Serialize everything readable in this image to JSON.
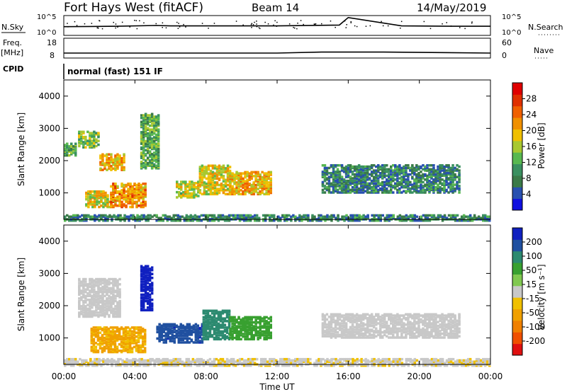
{
  "header": {
    "station": "Fort Hays West (fitACF)",
    "beam": "Beam 14",
    "date": "14/May/2019"
  },
  "summary": {
    "nsky_label": "N.Sky",
    "nsearch_label": "N.Search",
    "noise_ticks_left": [
      "10^5",
      "10^0"
    ],
    "noise_ticks_right": [
      "10^5",
      "10^0"
    ],
    "freq_label": "Freq.",
    "freq_unit": "[MHz]",
    "freq_ticks": [
      "18",
      "8"
    ],
    "nave_label": "Nave",
    "nave_ticks": [
      "60",
      "0"
    ],
    "cpid_label": "CPID",
    "cpid_text": "normal (fast) 151 IF"
  },
  "axes": {
    "ylabel": "Slant Range [km]",
    "yticks": [
      "4000",
      "3000",
      "2000",
      "1000"
    ],
    "xticks": [
      "00:00",
      "04:00",
      "08:00",
      "12:00",
      "16:00",
      "20:00",
      "00:00"
    ],
    "xlabel": "Time UT"
  },
  "power_scale": {
    "title": "Power [dB]",
    "ticks": [
      "28",
      "24",
      "20",
      "16",
      "12",
      "8",
      "4"
    ],
    "colors": [
      "#1010e0",
      "#2850b0",
      "#3a7a48",
      "#3a9060",
      "#58b850",
      "#a8c830",
      "#f0c000",
      "#f09000",
      "#f06000",
      "#e03000",
      "#e00000"
    ]
  },
  "velocity_scale": {
    "title": "Velocity [m s⁻¹]",
    "ticks": [
      "200",
      "100",
      "50",
      "15",
      "-15",
      "-50",
      "-100",
      "-200"
    ],
    "colors": [
      "#e01010",
      "#f05000",
      "#f08000",
      "#f0a000",
      "#f0c000",
      "#c8c8c8",
      "#80c850",
      "#38a030",
      "#2c8a70",
      "#2050a0",
      "#1020c0"
    ]
  },
  "chart_data": [
    {
      "type": "line",
      "title": "Fort Hays West (fitACF)",
      "panel": "N.Sky / N.Search noise",
      "x": [
        0,
        3,
        5.2,
        6,
        9,
        12,
        15.5,
        16,
        19,
        22,
        24
      ],
      "y_log10": [
        2.2,
        2.3,
        2.5,
        2.4,
        2.4,
        2.4,
        2.6,
        4.5,
        2.4,
        2.3,
        2.3
      ],
      "ylim": [
        0,
        5
      ]
    },
    {
      "type": "line",
      "panel": "Frequency / Nave",
      "x": [
        0,
        6,
        12,
        14.5,
        18,
        24
      ],
      "freq_mhz": [
        10.5,
        10.5,
        10.5,
        11,
        11,
        10.5
      ],
      "ylim": [
        8,
        18
      ]
    },
    {
      "type": "heatmap",
      "panel": "Power",
      "xlabel": "Time UT",
      "ylabel": "Slant Range [km]",
      "xlim": [
        0,
        24
      ],
      "ylim": [
        180,
        4500
      ],
      "colorbar": {
        "label": "Power [dB]",
        "range": [
          0,
          32
        ]
      },
      "features": [
        {
          "t0": 0.0,
          "t1": 0.7,
          "r0": 2200,
          "r1": 2600,
          "value": 12
        },
        {
          "t0": 0.8,
          "t1": 2.0,
          "r0": 2450,
          "r1": 2950,
          "value": 14
        },
        {
          "t0": 2.0,
          "t1": 3.4,
          "r0": 1750,
          "r1": 2250,
          "value": 20
        },
        {
          "t0": 1.2,
          "t1": 2.6,
          "r0": 600,
          "r1": 1100,
          "value": 18
        },
        {
          "t0": 2.6,
          "t1": 4.6,
          "r0": 600,
          "r1": 1350,
          "value": 22
        },
        {
          "t0": 4.3,
          "t1": 5.3,
          "r0": 1800,
          "r1": 3500,
          "value": 12
        },
        {
          "t0": 6.3,
          "t1": 7.6,
          "r0": 900,
          "r1": 1400,
          "value": 16
        },
        {
          "t0": 7.6,
          "t1": 9.3,
          "r0": 1000,
          "r1": 1900,
          "value": 18
        },
        {
          "t0": 9.3,
          "t1": 11.6,
          "r0": 1000,
          "r1": 1700,
          "value": 20
        },
        {
          "t0": 14.5,
          "t1": 22.2,
          "r0": 1050,
          "r1": 1900,
          "value": 8
        },
        {
          "t0": 0.0,
          "t1": 24.0,
          "r0": 180,
          "r1": 350,
          "value": 8
        }
      ]
    },
    {
      "type": "heatmap",
      "panel": "Velocity",
      "xlabel": "Time UT",
      "ylabel": "Slant Range [km]",
      "xlim": [
        0,
        24
      ],
      "ylim": [
        180,
        4500
      ],
      "colorbar": {
        "label": "Velocity [m s⁻¹]",
        "range": [
          -250,
          250
        ]
      },
      "features": [
        {
          "t0": 0.8,
          "t1": 3.2,
          "r0": 1700,
          "r1": 2900,
          "value": 0
        },
        {
          "t0": 1.5,
          "t1": 4.6,
          "r0": 600,
          "r1": 1400,
          "value": -70
        },
        {
          "t0": 4.3,
          "t1": 5.0,
          "r0": 1900,
          "r1": 3300,
          "value": 220
        },
        {
          "t0": 5.2,
          "t1": 7.8,
          "r0": 900,
          "r1": 1500,
          "value": 200
        },
        {
          "t0": 7.8,
          "t1": 9.3,
          "r0": 1000,
          "r1": 1900,
          "value": 150
        },
        {
          "t0": 9.3,
          "t1": 11.6,
          "r0": 1000,
          "r1": 1700,
          "value": 100
        },
        {
          "t0": 14.5,
          "t1": 22.2,
          "r0": 1050,
          "r1": 1800,
          "value": 0
        },
        {
          "t0": 0.0,
          "t1": 24.0,
          "r0": 180,
          "r1": 400,
          "value": -20
        }
      ]
    }
  ]
}
